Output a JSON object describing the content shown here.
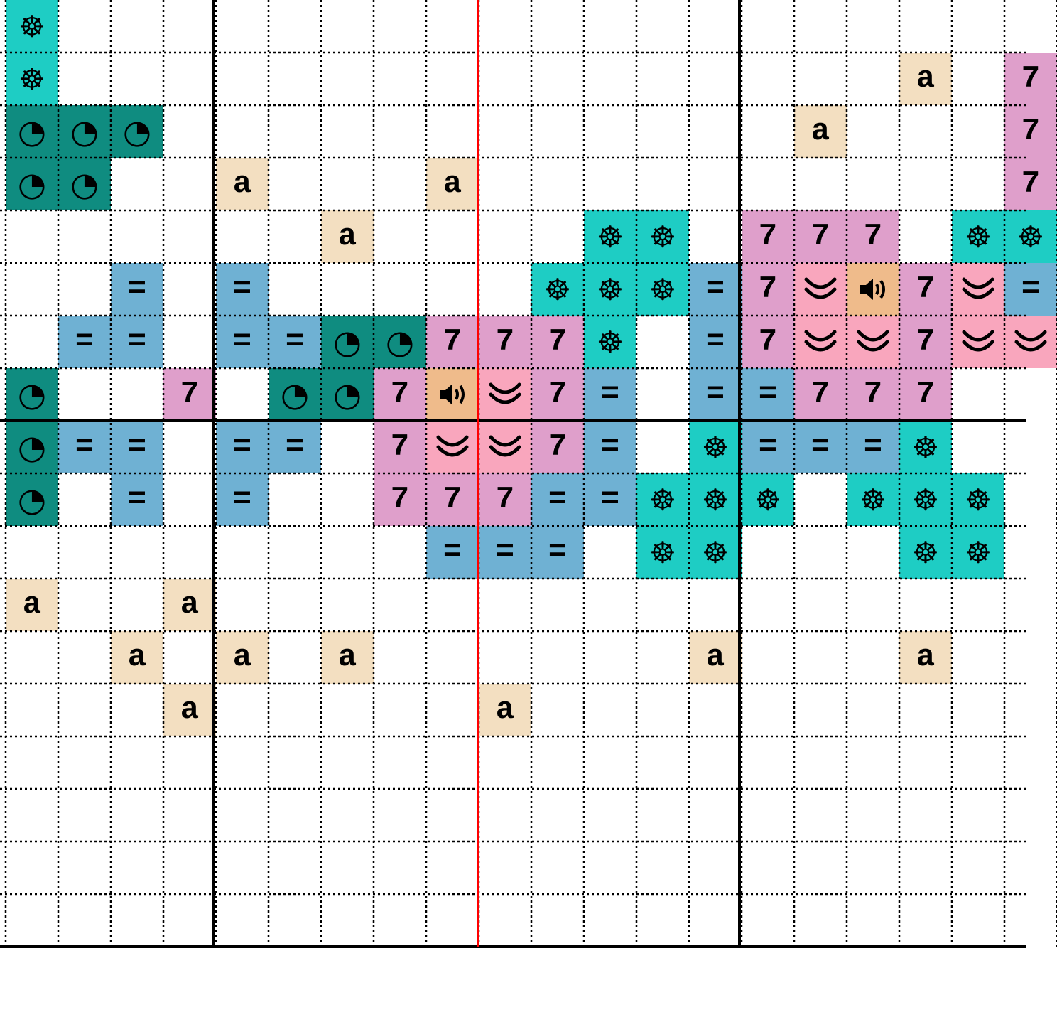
{
  "pattern": {
    "legend": {
      "W": {
        "symbol": "☸",
        "icon": "ship-wheel-icon",
        "color": "#1ecdc4"
      },
      "C": {
        "symbol": "◔",
        "icon": "clock-icon",
        "color": "#0f8c80"
      },
      "a": {
        "symbol": "a",
        "icon": "letter-a",
        "color": "#f3dfc1"
      },
      "7": {
        "symbol": "7",
        "icon": "digit-7",
        "color": "#df9fcb"
      },
      "E": {
        "symbol": "=",
        "icon": "equals-icon",
        "color": "#6fb1d3"
      },
      "V": {
        "symbol": "",
        "icon": "double-chevron-icon",
        "color": "#f9a6bd"
      },
      "S": {
        "symbol": "",
        "icon": "speaker-icon",
        "color": "#efbb8b"
      }
    },
    "rows": [
      "W...................",
      "W................a.7",
      "CCC............a...7",
      "CC..a...a..........7",
      "......a....WW.777.WW",
      "..E.E.....WWWE7VS7VE",
      ".EE.EECC777W.E7VV7VV",
      "C..7.CC7SV7E.EE777..",
      "CEE.EE.7VV7E.WEEEW..",
      "C.E.E..777EEWWW.WWW.",
      "........EEE.WW...WW.",
      "a..a................",
      "..a.a.a......a...a..",
      "...a.....a..........",
      "....................",
      "....................",
      "....................",
      "...................."
    ],
    "grid_color": "#000000",
    "center_line_color": "#ff0000"
  }
}
